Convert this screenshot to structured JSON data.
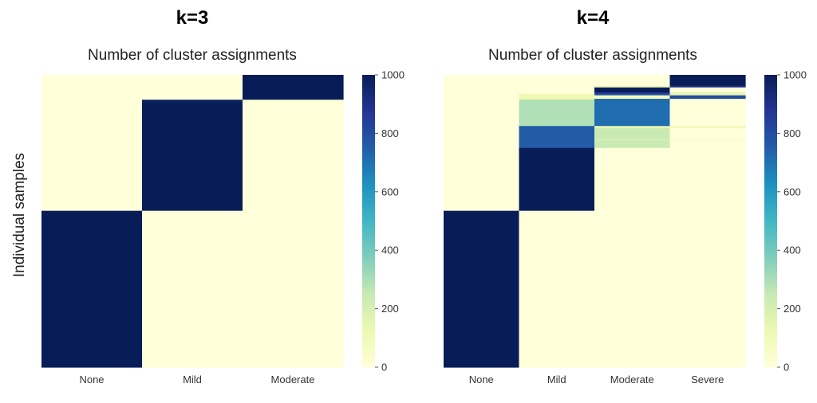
{
  "figure": {
    "ylabel": "Individual samples"
  },
  "colormap": {
    "name": "YlGnBu",
    "stops": [
      [
        0.0,
        "#ffffd9"
      ],
      [
        0.125,
        "#edf8b1"
      ],
      [
        0.25,
        "#c7e9b4"
      ],
      [
        0.375,
        "#7fcdbb"
      ],
      [
        0.5,
        "#41b6c4"
      ],
      [
        0.625,
        "#1d91c0"
      ],
      [
        0.75,
        "#225ea8"
      ],
      [
        0.875,
        "#253494"
      ],
      [
        1.0,
        "#081d58"
      ]
    ]
  },
  "chart_data": [
    {
      "type": "heatmap",
      "title": "k=3",
      "subtitle": "Number of cluster assignments",
      "columns": [
        "None",
        "Mild",
        "Moderate"
      ],
      "vmin": 0,
      "vmax": 1000,
      "colorbar_ticks": [
        0,
        200,
        400,
        600,
        800,
        1000
      ],
      "rows": [
        {
          "from": 0.0,
          "to": 0.085,
          "values": [
            0,
            0,
            1000
          ]
        },
        {
          "from": 0.085,
          "to": 0.095,
          "values": [
            0,
            980,
            20
          ]
        },
        {
          "from": 0.095,
          "to": 0.465,
          "values": [
            0,
            1000,
            0
          ]
        },
        {
          "from": 0.465,
          "to": 1.0,
          "values": [
            1000,
            0,
            0
          ]
        }
      ]
    },
    {
      "type": "heatmap",
      "title": "k=4",
      "subtitle": "Number of cluster assignments",
      "columns": [
        "None",
        "Mild",
        "Moderate",
        "Severe"
      ],
      "vmin": 0,
      "vmax": 1000,
      "colorbar_ticks": [
        0,
        200,
        400,
        600,
        800,
        1000
      ],
      "rows": [
        {
          "from": 0.0,
          "to": 0.037,
          "values": [
            0,
            0,
            0,
            1000
          ]
        },
        {
          "from": 0.037,
          "to": 0.043,
          "values": [
            0,
            0,
            100,
            900
          ]
        },
        {
          "from": 0.043,
          "to": 0.06,
          "values": [
            0,
            0,
            1000,
            0
          ]
        },
        {
          "from": 0.06,
          "to": 0.066,
          "values": [
            0,
            0,
            850,
            150
          ]
        },
        {
          "from": 0.066,
          "to": 0.07,
          "values": [
            0,
            120,
            780,
            100
          ]
        },
        {
          "from": 0.07,
          "to": 0.082,
          "values": [
            0,
            120,
            80,
            800
          ]
        },
        {
          "from": 0.082,
          "to": 0.085,
          "values": [
            0,
            150,
            750,
            100
          ]
        },
        {
          "from": 0.085,
          "to": 0.175,
          "values": [
            0,
            290,
            710,
            0
          ]
        },
        {
          "from": 0.175,
          "to": 0.183,
          "values": [
            0,
            750,
            150,
            100
          ]
        },
        {
          "from": 0.183,
          "to": 0.22,
          "values": [
            0,
            760,
            240,
            0
          ]
        },
        {
          "from": 0.22,
          "to": 0.223,
          "values": [
            0,
            760,
            180,
            60
          ]
        },
        {
          "from": 0.223,
          "to": 0.25,
          "values": [
            0,
            760,
            240,
            0
          ]
        },
        {
          "from": 0.25,
          "to": 0.465,
          "values": [
            0,
            1000,
            0,
            0
          ]
        },
        {
          "from": 0.465,
          "to": 1.0,
          "values": [
            1000,
            0,
            0,
            0
          ]
        }
      ]
    }
  ]
}
